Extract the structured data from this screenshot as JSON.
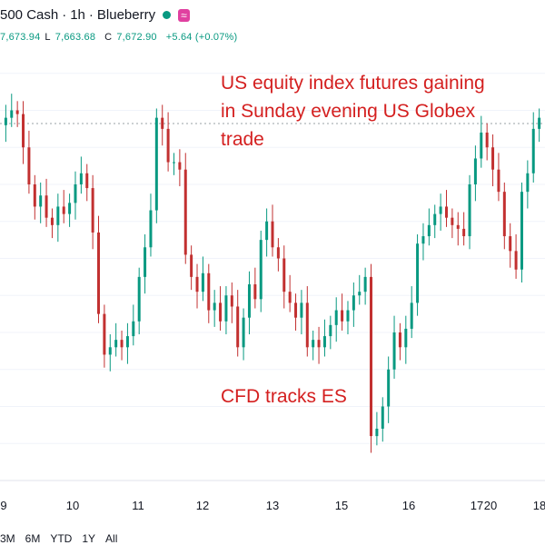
{
  "header": {
    "symbol": "500 Cash",
    "interval": "1h",
    "source": "Blueberry",
    "status_color": "#089981",
    "icon": "wave-icon"
  },
  "ohlc": {
    "open_value": "7,673.94",
    "low_key": "L",
    "low_value": "7,663.68",
    "close_key": "C",
    "close_value": "7,672.90",
    "change": "+5.64 (+0.07%)"
  },
  "annotations": {
    "headline": [
      "US equity index futures gaining",
      "in Sunday evening US Globex",
      "trade"
    ],
    "note": "CFD tracks ES"
  },
  "range_buttons": [
    "3M",
    "6M",
    "YTD",
    "1Y",
    "All"
  ],
  "colors": {
    "up": "#089981",
    "down": "#c23030",
    "annotation": "#d42020"
  },
  "chart_data": {
    "type": "line",
    "x_ticks": [
      "9",
      "10",
      "11",
      "12",
      "13",
      "15",
      "16",
      "17",
      "18",
      "20"
    ],
    "series": [
      {
        "values": [
          7672,
          7676,
          7680,
          7678,
          7660,
          7640,
          7628,
          7634,
          7622,
          7618,
          7628,
          7624,
          7630,
          7640,
          7646,
          7638,
          7614,
          7570,
          7548,
          7552,
          7556,
          7552,
          7558,
          7566,
          7590,
          7606,
          7626,
          7676,
          7670,
          7652,
          7652,
          7648,
          7602,
          7590,
          7582,
          7592,
          7572,
          7576,
          7566,
          7580,
          7574,
          7552,
          7568,
          7586,
          7578,
          7610,
          7620,
          7606,
          7600,
          7582,
          7576,
          7568,
          7576,
          7552,
          7556,
          7552,
          7558,
          7564,
          7572,
          7566,
          7572,
          7580,
          7582,
          7590,
          7504,
          7508,
          7520,
          7540,
          7560,
          7552,
          7562,
          7576,
          7608,
          7612,
          7618,
          7624,
          7628,
          7622,
          7618,
          7616,
          7612,
          7640,
          7654,
          7668,
          7660,
          7648,
          7636,
          7612,
          7604,
          7594,
          7636,
          7646,
          7670,
          7676
        ]
      }
    ],
    "y_reference": 7672.9,
    "grid": true
  }
}
